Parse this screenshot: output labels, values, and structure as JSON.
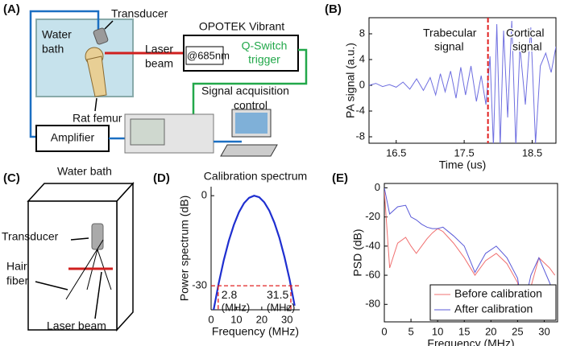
{
  "panels": {
    "a": "(A)",
    "b": "(B)",
    "c": "(C)",
    "d": "(D)",
    "e": "(E)"
  },
  "diagram_a": {
    "transducer": "Transducer",
    "water_bath": [
      "Water",
      "bath"
    ],
    "laser_beam": [
      "Laser",
      "beam"
    ],
    "laser_name": "OPOTEK Vibrant",
    "wavelength": "@685nm",
    "trigger": [
      "Q-Switch",
      "trigger"
    ],
    "femur": "Rat femur",
    "acquisition": [
      "Signal acquisition",
      "control"
    ],
    "amplifier": "Amplifier"
  },
  "diagram_c": {
    "water_bath": "Water bath",
    "transducer": "Transducer",
    "hair_fiber": [
      "Hair",
      "fiber"
    ],
    "laser_beam": "Laser beam"
  },
  "chart_data": [
    {
      "type": "line",
      "xlabel": "Time (us)",
      "ylabel": "PA signal (a.u.)",
      "box": true,
      "xlim": [
        16.1,
        18.85
      ],
      "ylim": [
        -9,
        10.5
      ],
      "xticks": [
        16.5,
        17.5,
        18.5
      ],
      "yticks": [
        8,
        4,
        0,
        -4,
        -8
      ],
      "x": [
        16.1,
        16.2,
        16.3,
        16.4,
        16.5,
        16.6,
        16.7,
        16.8,
        16.9,
        17.0,
        17.08,
        17.15,
        17.22,
        17.3,
        17.38,
        17.45,
        17.52,
        17.6,
        17.68,
        17.75,
        17.82,
        17.88,
        17.93,
        17.98,
        18.03,
        18.08,
        18.14,
        18.2,
        18.26,
        18.32,
        18.4,
        18.48,
        18.55,
        18.62,
        18.7,
        18.78,
        18.85
      ],
      "series": [
        {
          "color": "#6f6fe0",
          "values": [
            0,
            0.3,
            -0.2,
            0.1,
            -0.3,
            0.5,
            -0.6,
            1.0,
            -0.8,
            1.2,
            -1.5,
            1.8,
            -1.0,
            2.2,
            -2.0,
            2.8,
            -1.5,
            3.0,
            -2.5,
            1.5,
            -3.0,
            4.5,
            -9.5,
            9.5,
            -9.5,
            8.5,
            -5,
            10,
            -9.5,
            6,
            -3,
            9,
            -9,
            3,
            5,
            2,
            6
          ]
        }
      ],
      "marker_x": 17.85,
      "marker_color": "#e02020",
      "annotations": [
        [
          "Trabecular",
          "signal"
        ],
        [
          "Cortical",
          "signal"
        ]
      ]
    },
    {
      "type": "line",
      "title": "Calibration spectrum",
      "xlabel": "Frequency (MHz)",
      "ylabel": "Power spectrum (dB)",
      "box": false,
      "xlim": [
        0,
        35
      ],
      "ylim": [
        -38,
        3
      ],
      "xticks": [
        0,
        10,
        20,
        30
      ],
      "yticks": [
        0,
        -30
      ],
      "x": [
        1,
        3,
        5,
        7,
        9,
        11,
        13,
        15,
        17,
        19,
        21,
        23,
        25,
        27,
        29,
        31,
        33
      ],
      "series": [
        {
          "color": "#1f2fd0",
          "values": [
            -38.0,
            -29.2,
            -21.5,
            -15.0,
            -9.7,
            -5.5,
            -2.5,
            -0.7,
            0,
            -0.5,
            -2.2,
            -5.0,
            -9.0,
            -14.1,
            -20.5,
            -27.9,
            -36.6
          ]
        }
      ],
      "threshold": -30,
      "threshold_color": "#e02020",
      "cutoffs": [
        2.8,
        31.5
      ],
      "cutoff_unit": "(MHz)"
    },
    {
      "type": "line",
      "xlabel": "Frequency (MHz)",
      "ylabel": "PSD  (dB)",
      "box": true,
      "legend": "lower right",
      "xlim": [
        0,
        32.5
      ],
      "ylim": [
        -92,
        3
      ],
      "xticks": [
        0,
        5,
        10,
        15,
        20,
        25,
        30
      ],
      "yticks": [
        0,
        -20,
        -40,
        -60,
        -80
      ],
      "x": [
        0,
        1,
        2.5,
        4,
        5,
        6,
        7,
        8,
        9,
        10,
        11,
        13,
        15,
        17,
        19,
        21,
        23,
        25,
        26,
        27.5,
        29,
        31,
        32
      ],
      "series": [
        {
          "name": "Before calibration",
          "color": "#f07070",
          "values": [
            -2,
            -55,
            -38,
            -34,
            -40,
            -45,
            -40,
            -35,
            -31,
            -28,
            -30,
            -38,
            -48,
            -60,
            -50,
            -45,
            -52,
            -65,
            -88,
            -68,
            -48,
            -55,
            -60
          ]
        },
        {
          "name": "After calibration",
          "color": "#5a5ad8",
          "values": [
            0,
            -18,
            -13,
            -12,
            -20,
            -22,
            -25,
            -27,
            -28,
            -28,
            -27,
            -33,
            -40,
            -58,
            -45,
            -40,
            -48,
            -62,
            -85,
            -60,
            -48,
            -65,
            -75
          ]
        }
      ]
    }
  ]
}
